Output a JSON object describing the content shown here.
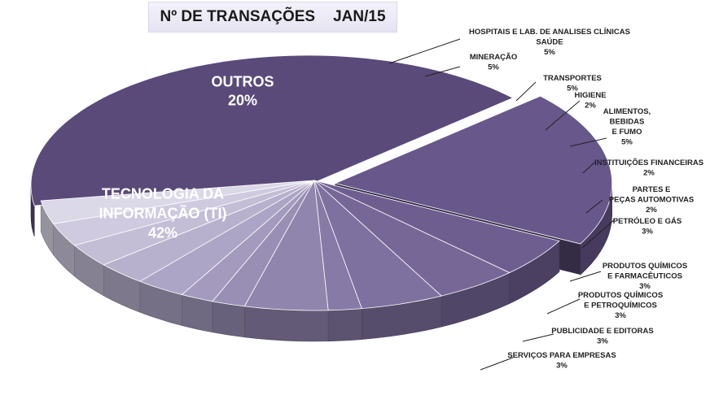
{
  "title_main": "Nº DE TRANSAÇÕES",
  "title_period": "JAN/15",
  "chart_data": {
    "type": "pie",
    "title": "Nº DE TRANSAÇÕES JAN/15",
    "value_unit": "%",
    "slices": [
      {
        "label_lines": [
          "TECNOLOGIA DA",
          "INFORMAÇÃO (TI)"
        ],
        "value": 42,
        "pct": "42%",
        "color": "#5a4a7a"
      },
      {
        "label_lines": [
          "OUTROS"
        ],
        "value": 20,
        "pct": "20%",
        "color": "#67578a"
      },
      {
        "label_lines": [
          "HOSPITAIS E LAB. DE ANALISES CLÍNICAS",
          "SAÚDE"
        ],
        "value": 5,
        "pct": "5%",
        "color": "#6e5e90"
      },
      {
        "label_lines": [
          "MINERAÇÃO"
        ],
        "value": 5,
        "pct": "5%",
        "color": "#766797"
      },
      {
        "label_lines": [
          "TRANSPORTES"
        ],
        "value": 5,
        "pct": "5%",
        "color": "#7f719f"
      },
      {
        "label_lines": [
          "HIGIENE"
        ],
        "value": 2,
        "pct": "2%",
        "color": "#877aa6"
      },
      {
        "label_lines": [
          "ALIMENTOS,",
          "BEBIDAS",
          "E FUMO"
        ],
        "value": 5,
        "pct": "5%",
        "color": "#9085ad"
      },
      {
        "label_lines": [
          "INSTITUIÇÕES FINANCEIRAS"
        ],
        "value": 2,
        "pct": "2%",
        "color": "#998fb5"
      },
      {
        "label_lines": [
          "PARTES E",
          "PEÇAS AUTOMOTIVAS"
        ],
        "value": 2,
        "pct": "2%",
        "color": "#a39abd"
      },
      {
        "label_lines": [
          "PETRÓLEO E GÁS"
        ],
        "value": 3,
        "pct": "3%",
        "color": "#ada5c5"
      },
      {
        "label_lines": [
          "PRODUTOS QUÍMICOS",
          "E FARMACÊUTICOS"
        ],
        "value": 3,
        "pct": "3%",
        "color": "#b8b1cd"
      },
      {
        "label_lines": [
          "PRODUTOS QUÍMICOS",
          "E PETROQUÍMICOS"
        ],
        "value": 3,
        "pct": "3%",
        "color": "#c3bdd6"
      },
      {
        "label_lines": [
          "PUBLICIDADE E EDITORAS"
        ],
        "value": 3,
        "pct": "3%",
        "color": "#cfcadf"
      },
      {
        "label_lines": [
          "SERVIÇOS PARA EMPRESAS"
        ],
        "value": 3,
        "pct": "3%",
        "color": "#dbd8e8"
      }
    ]
  }
}
